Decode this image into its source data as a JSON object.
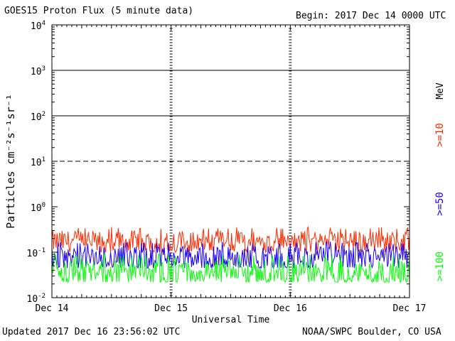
{
  "header": {
    "title": "GOES15 Proton Flux (5 minute data)",
    "begin": "Begin: 2017 Dec 14 0000 UTC"
  },
  "footer": {
    "updated": "Updated 2017 Dec 16 23:56:02 UTC",
    "credit": "NOAA/SWPC Boulder, CO USA"
  },
  "chart_data": {
    "type": "line",
    "ylabel": "Particles cm⁻²s⁻¹sr⁻¹",
    "xlabel": "Universal Time",
    "yscale": "log",
    "ylim": [
      0.01,
      10000
    ],
    "ytick_labels": [
      {
        "base": "10",
        "exp": "-2"
      },
      {
        "base": "10",
        "exp": "-1"
      },
      {
        "base": "10",
        "exp": "0"
      },
      {
        "base": "10",
        "exp": "1"
      },
      {
        "base": "10",
        "exp": "2"
      },
      {
        "base": "10",
        "exp": "3"
      },
      {
        "base": "10",
        "exp": "4"
      }
    ],
    "xtick_labels": [
      "Dec 14",
      "Dec 15",
      "Dec 16",
      "Dec 17"
    ],
    "xlim": [
      "2017-12-14",
      "2017-12-17"
    ],
    "threshold_lines": [
      10,
      100,
      1000
    ],
    "threshold_line_styles": [
      "dashed",
      "solid",
      "solid"
    ],
    "unit_label": "MeV",
    "series": [
      {
        "name": ">=10",
        "color": "#ff2a00",
        "base": 0.17,
        "low": 0.1,
        "high": 0.36
      },
      {
        "name": ">=50",
        "color": "#1a00ff",
        "base": 0.075,
        "low": 0.045,
        "high": 0.17
      },
      {
        "name": ">=100",
        "color": "#00ff00",
        "base": 0.035,
        "low": 0.022,
        "high": 0.09
      }
    ]
  }
}
